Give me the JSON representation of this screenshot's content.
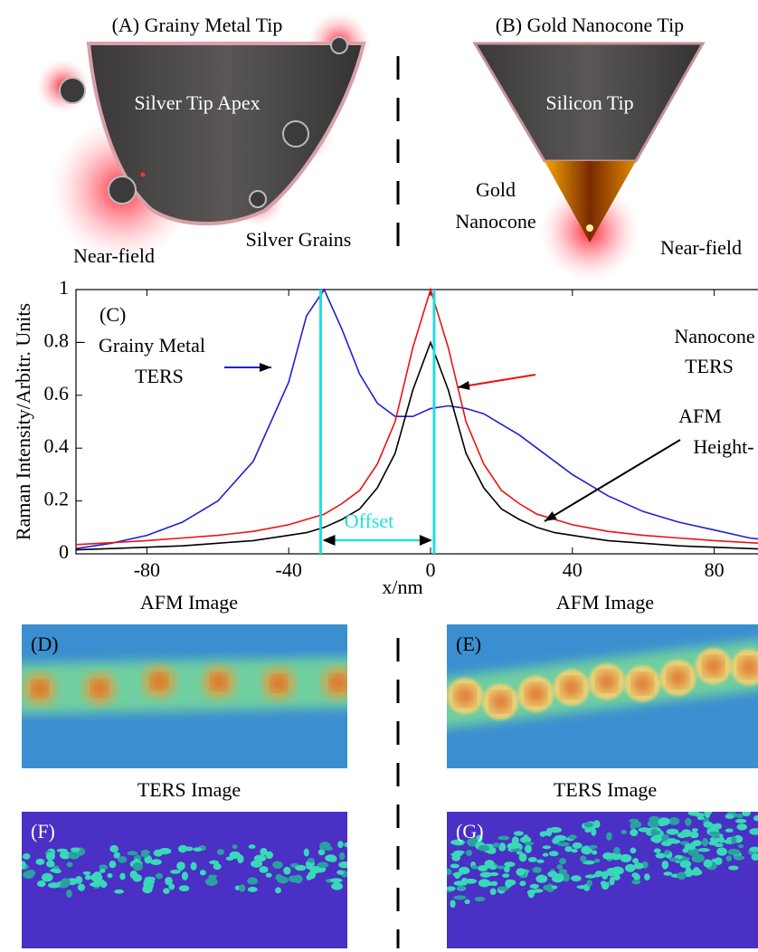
{
  "top": {
    "a": {
      "title": "(A) Grainy Metal Tip",
      "apex": "Silver Tip Apex",
      "near_field": "Near-field",
      "grains": "Silver Grains"
    },
    "b": {
      "title": "(B) Gold Nanocone Tip",
      "tip": "Silicon Tip",
      "cone_1": "Gold",
      "cone_2": "Nanocone",
      "near_field": "Near-field"
    }
  },
  "chart_data": {
    "type": "line",
    "y_label": "Raman Intensity/Arbitr. Units",
    "x_label": "x/nm",
    "x": [
      -100,
      -90,
      -80,
      -70,
      -60,
      -50,
      -40,
      -35,
      -30,
      -25,
      -20,
      -15,
      -10,
      -5,
      0,
      5,
      10,
      15,
      20,
      25,
      30,
      35,
      40,
      50,
      60,
      70,
      80,
      90,
      100
    ],
    "series": [
      {
        "name": "Grainy Metal TERS",
        "color": "#1f1fd8",
        "values": [
          0.02,
          0.04,
          0.07,
          0.12,
          0.2,
          0.35,
          0.65,
          0.9,
          1,
          0.85,
          0.68,
          0.57,
          0.52,
          0.52,
          0.55,
          0.56,
          0.55,
          0.53,
          0.49,
          0.45,
          0.4,
          0.35,
          0.3,
          0.22,
          0.16,
          0.12,
          0.09,
          0.06,
          0.045
        ]
      },
      {
        "name": "Nanocone TERS",
        "color": "#ee1111",
        "values": [
          0.035,
          0.042,
          0.05,
          0.06,
          0.07,
          0.085,
          0.11,
          0.13,
          0.15,
          0.19,
          0.24,
          0.34,
          0.5,
          0.78,
          1,
          0.78,
          0.5,
          0.34,
          0.24,
          0.19,
          0.15,
          0.13,
          0.11,
          0.085,
          0.07,
          0.06,
          0.05,
          0.042,
          0.035
        ]
      },
      {
        "name": "AFM Height",
        "color": "#000000",
        "values": [
          0.015,
          0.02,
          0.025,
          0.03,
          0.04,
          0.05,
          0.07,
          0.08,
          0.1,
          0.13,
          0.17,
          0.25,
          0.38,
          0.62,
          0.8,
          0.62,
          0.38,
          0.25,
          0.17,
          0.13,
          0.1,
          0.08,
          0.07,
          0.05,
          0.04,
          0.03,
          0.025,
          0.02,
          0.015
        ]
      }
    ],
    "vlines": [
      -31,
      1
    ],
    "vline_color": "#22dde0",
    "xlim": [
      -100,
      100
    ],
    "xticks": [
      -80,
      -40,
      0,
      40,
      80
    ],
    "ylim": [
      0,
      1
    ],
    "yticks": [
      0,
      0.2,
      0.4,
      0.6,
      0.8,
      1
    ],
    "annotations": {
      "panel": "(C)",
      "grainy_1": "Grainy Metal",
      "grainy_2": "TERS",
      "cone_1": "Nanocone",
      "cone_2": "TERS",
      "afm_1": "AFM",
      "afm_2": "Height-",
      "offset": "Offset"
    }
  },
  "images": [
    {
      "title": "AFM Image",
      "label": "(D)"
    },
    {
      "title": "AFM Image",
      "label": "(E)"
    },
    {
      "title": "TERS Image",
      "label": "(F)"
    },
    {
      "title": "TERS Image",
      "label": "(G)"
    }
  ]
}
